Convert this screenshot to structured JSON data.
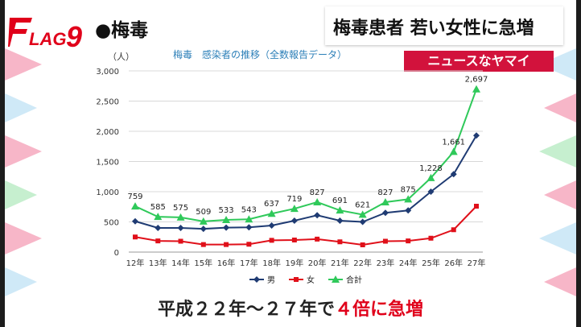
{
  "topic_label": "●梅毒",
  "headline": "梅毒患者 若い女性に急増",
  "badge": "ニュースなヤマイ",
  "logo_text": "FLAG9",
  "caption_prefix": "平成２２年〜２７年で",
  "caption_emphasis": "４倍に急増",
  "colors": {
    "badge": "#d2123c",
    "male": "#1f3b73",
    "female": "#e0101a",
    "total": "#2fc95a",
    "emphasis": "#e0001a"
  },
  "chart_data": {
    "type": "line",
    "title": "梅毒　感染者の推移（全数報告データ）",
    "ylabel": "（人）",
    "ylim": [
      0,
      3000
    ],
    "yticks": [
      "0",
      "500",
      "1,000",
      "1,500",
      "2,000",
      "2,500",
      "3,000"
    ],
    "grid": true,
    "legend_position": "bottom",
    "categories": [
      "12年",
      "13年",
      "14年",
      "15年",
      "16年",
      "17年",
      "18年",
      "19年",
      "20年",
      "21年",
      "22年",
      "23年",
      "24年",
      "25年",
      "26年",
      "27年"
    ],
    "series": [
      {
        "name": "男",
        "color": "#1f3b73",
        "marker": "diamond",
        "values": [
          510,
          400,
          400,
          385,
          405,
          410,
          440,
          520,
          610,
          520,
          500,
          650,
          690,
          1000,
          1290,
          1930
        ]
      },
      {
        "name": "女",
        "color": "#e0101a",
        "marker": "square",
        "values": [
          250,
          185,
          180,
          125,
          125,
          130,
          195,
          200,
          215,
          170,
          120,
          180,
          185,
          230,
          370,
          760
        ]
      },
      {
        "name": "合計",
        "color": "#2fc95a",
        "marker": "triangle",
        "values": [
          759,
          585,
          575,
          509,
          533,
          543,
          637,
          719,
          827,
          691,
          621,
          827,
          875,
          1228,
          1661,
          2697
        ],
        "labels": [
          "759",
          "585",
          "575",
          "509",
          "533",
          "543",
          "637",
          "719",
          "827",
          "691",
          "621",
          "827",
          "875",
          "1,228",
          "1,661",
          "2,697"
        ]
      }
    ]
  }
}
